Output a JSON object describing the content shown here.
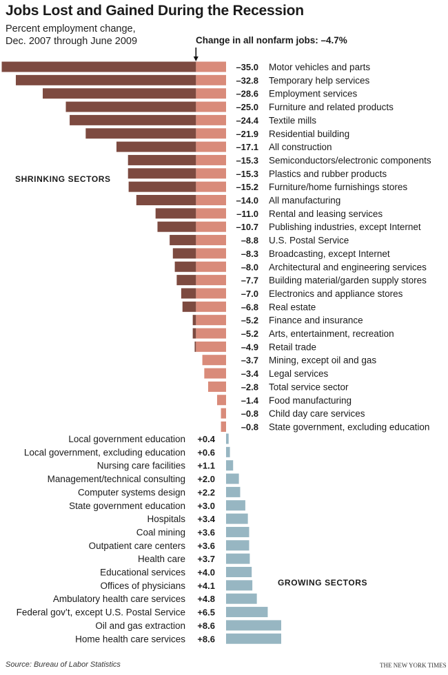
{
  "title": "Jobs Lost and Gained During the Recession",
  "subtitle_line1": "Percent employment change,",
  "subtitle_line2": "Dec. 2007 through June 2009",
  "nonfarm_note": "Change in all nonfarm jobs: –4.7%",
  "shrinking_label": "SHRINKING SECTORS",
  "growing_label": "GROWING SECTORS",
  "source": "Source: Bureau of Labor Statistics",
  "credit": "THE NEW YORK TIMES",
  "colors": {
    "loss_dark": "#7d4a40",
    "loss_light": "#d98b7a",
    "gain": "#97b6c2"
  },
  "chart_data": {
    "type": "bar",
    "orientation": "horizontal",
    "reference_line": -4.7,
    "shrinking": [
      {
        "category": "Motor vehicles and parts",
        "value": -35.0,
        "label": "–35.0"
      },
      {
        "category": "Temporary help services",
        "value": -32.8,
        "label": "–32.8"
      },
      {
        "category": "Employment services",
        "value": -28.6,
        "label": "–28.6"
      },
      {
        "category": "Furniture and related products",
        "value": -25.0,
        "label": "–25.0"
      },
      {
        "category": "Textile mills",
        "value": -24.4,
        "label": "–24.4"
      },
      {
        "category": "Residential building",
        "value": -21.9,
        "label": "–21.9"
      },
      {
        "category": "All construction",
        "value": -17.1,
        "label": "–17.1"
      },
      {
        "category": "Semiconductors/electronic components",
        "value": -15.3,
        "label": "–15.3"
      },
      {
        "category": "Plastics and rubber products",
        "value": -15.3,
        "label": "–15.3"
      },
      {
        "category": "Furniture/home furnishings stores",
        "value": -15.2,
        "label": "–15.2"
      },
      {
        "category": "All manufacturing",
        "value": -14.0,
        "label": "–14.0"
      },
      {
        "category": "Rental and leasing services",
        "value": -11.0,
        "label": "–11.0"
      },
      {
        "category": "Publishing industries, except Internet",
        "value": -10.7,
        "label": "–10.7"
      },
      {
        "category": "U.S. Postal Service",
        "value": -8.8,
        "label": "–8.8"
      },
      {
        "category": "Broadcasting, except Internet",
        "value": -8.3,
        "label": "–8.3"
      },
      {
        "category": "Architectural and engineering services",
        "value": -8.0,
        "label": "–8.0"
      },
      {
        "category": "Building material/garden supply stores",
        "value": -7.7,
        "label": "–7.7"
      },
      {
        "category": "Electronics and appliance stores",
        "value": -7.0,
        "label": "–7.0"
      },
      {
        "category": "Real estate",
        "value": -6.8,
        "label": "–6.8"
      },
      {
        "category": "Finance and insurance",
        "value": -5.2,
        "label": "–5.2"
      },
      {
        "category": "Arts, entertainment, recreation",
        "value": -5.2,
        "label": "–5.2"
      },
      {
        "category": "Retail trade",
        "value": -4.9,
        "label": "–4.9"
      },
      {
        "category": "Mining, except oil and gas",
        "value": -3.7,
        "label": "–3.7"
      },
      {
        "category": "Legal services",
        "value": -3.4,
        "label": "–3.4"
      },
      {
        "category": "Total service sector",
        "value": -2.8,
        "label": "–2.8"
      },
      {
        "category": "Food manufacturing",
        "value": -1.4,
        "label": "–1.4"
      },
      {
        "category": "Child day care services",
        "value": -0.8,
        "label": "–0.8"
      },
      {
        "category": "State government, excluding education",
        "value": -0.8,
        "label": "–0.8"
      }
    ],
    "growing": [
      {
        "category": "Local government education",
        "value": 0.4,
        "label": "+0.4"
      },
      {
        "category": "Local government, excluding education",
        "value": 0.6,
        "label": "+0.6"
      },
      {
        "category": "Nursing care facilities",
        "value": 1.1,
        "label": "+1.1"
      },
      {
        "category": "Management/technical consulting",
        "value": 2.0,
        "label": "+2.0"
      },
      {
        "category": "Computer systems design",
        "value": 2.2,
        "label": "+2.2"
      },
      {
        "category": "State government education",
        "value": 3.0,
        "label": "+3.0"
      },
      {
        "category": "Hospitals",
        "value": 3.4,
        "label": "+3.4"
      },
      {
        "category": "Coal mining",
        "value": 3.6,
        "label": "+3.6"
      },
      {
        "category": "Outpatient care centers",
        "value": 3.6,
        "label": "+3.6"
      },
      {
        "category": "Health care",
        "value": 3.7,
        "label": "+3.7"
      },
      {
        "category": "Educational services",
        "value": 4.0,
        "label": "+4.0"
      },
      {
        "category": "Offices of physicians",
        "value": 4.1,
        "label": "+4.1"
      },
      {
        "category": "Ambulatory health care services",
        "value": 4.8,
        "label": "+4.8"
      },
      {
        "category": "Federal gov’t, except U.S. Postal Service",
        "value": 6.5,
        "label": "+6.5"
      },
      {
        "category": "Oil and gas extraction",
        "value": 8.6,
        "label": "+8.6"
      },
      {
        "category": "Home health care services",
        "value": 8.6,
        "label": "+8.6"
      }
    ]
  }
}
